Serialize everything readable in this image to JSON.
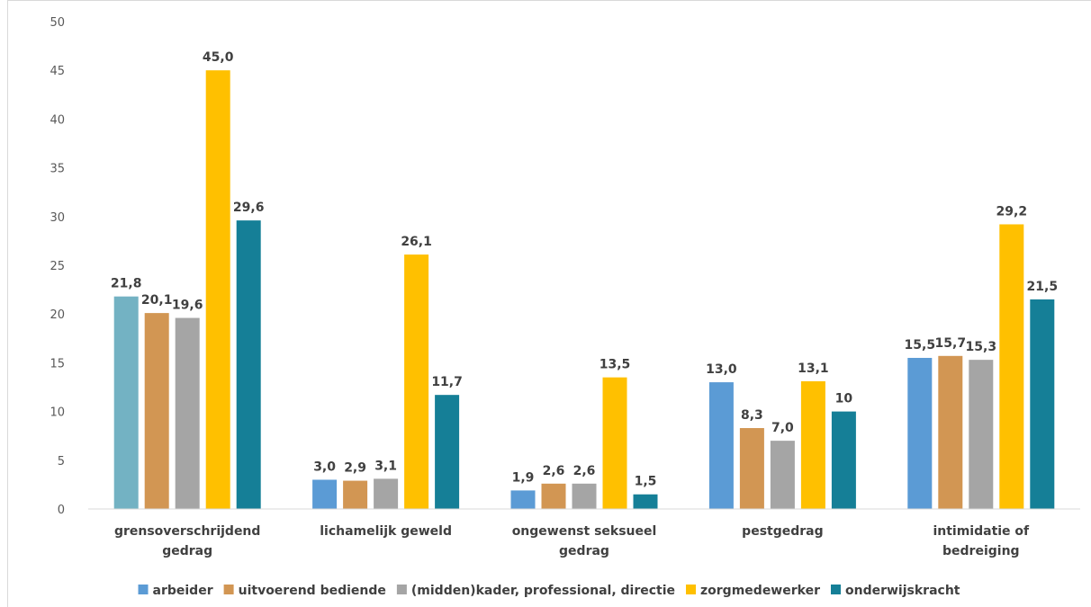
{
  "chart_data": {
    "type": "bar",
    "categories": [
      [
        "grensoverschrijdend",
        "gedrag"
      ],
      [
        "lichamelijk geweld"
      ],
      [
        "ongewenst seksueel",
        "gedrag"
      ],
      [
        "pestgedrag"
      ],
      [
        "intimidatie of",
        "bedreiging"
      ]
    ],
    "series": [
      {
        "name": "arbeider",
        "color": "#5b9bd5",
        "values": [
          21.8,
          3.0,
          1.9,
          13.0,
          15.5
        ],
        "labels": [
          "21,8",
          "3,0",
          "1,9",
          "13,0",
          "15,5"
        ]
      },
      {
        "name": "uitvoerend bediende",
        "color": "#d29653",
        "values": [
          20.1,
          2.9,
          2.6,
          8.3,
          15.7
        ],
        "labels": [
          "20,1",
          "2,9",
          "2,6",
          "8,3",
          "15,7"
        ]
      },
      {
        "name": "(midden)kader, professional, directie",
        "color": "#a5a5a5",
        "values": [
          19.6,
          3.1,
          2.6,
          7.0,
          15.3
        ],
        "labels": [
          "19,6",
          "3,1",
          "2,6",
          "7,0",
          "15,3"
        ]
      },
      {
        "name": "zorgmedewerker",
        "color": "#ffc000",
        "values": [
          45.0,
          26.1,
          13.5,
          13.1,
          29.2
        ],
        "labels": [
          "45,0",
          "26,1",
          "13,5",
          "13,1",
          "29,2"
        ]
      },
      {
        "name": "onderwijskracht",
        "color": "#157f97",
        "values": [
          29.6,
          11.7,
          1.5,
          10,
          21.5
        ],
        "labels": [
          "29,6",
          "11,7",
          "1,5",
          "10",
          "21,5"
        ]
      }
    ],
    "first_bar_color_override": "#73b2c3",
    "ylim": [
      0,
      50
    ],
    "yticks": [
      0,
      5,
      10,
      15,
      20,
      25,
      30,
      35,
      40,
      45,
      50
    ],
    "grid": false,
    "legend_position": "bottom",
    "title": "",
    "xlabel": "",
    "ylabel": ""
  }
}
